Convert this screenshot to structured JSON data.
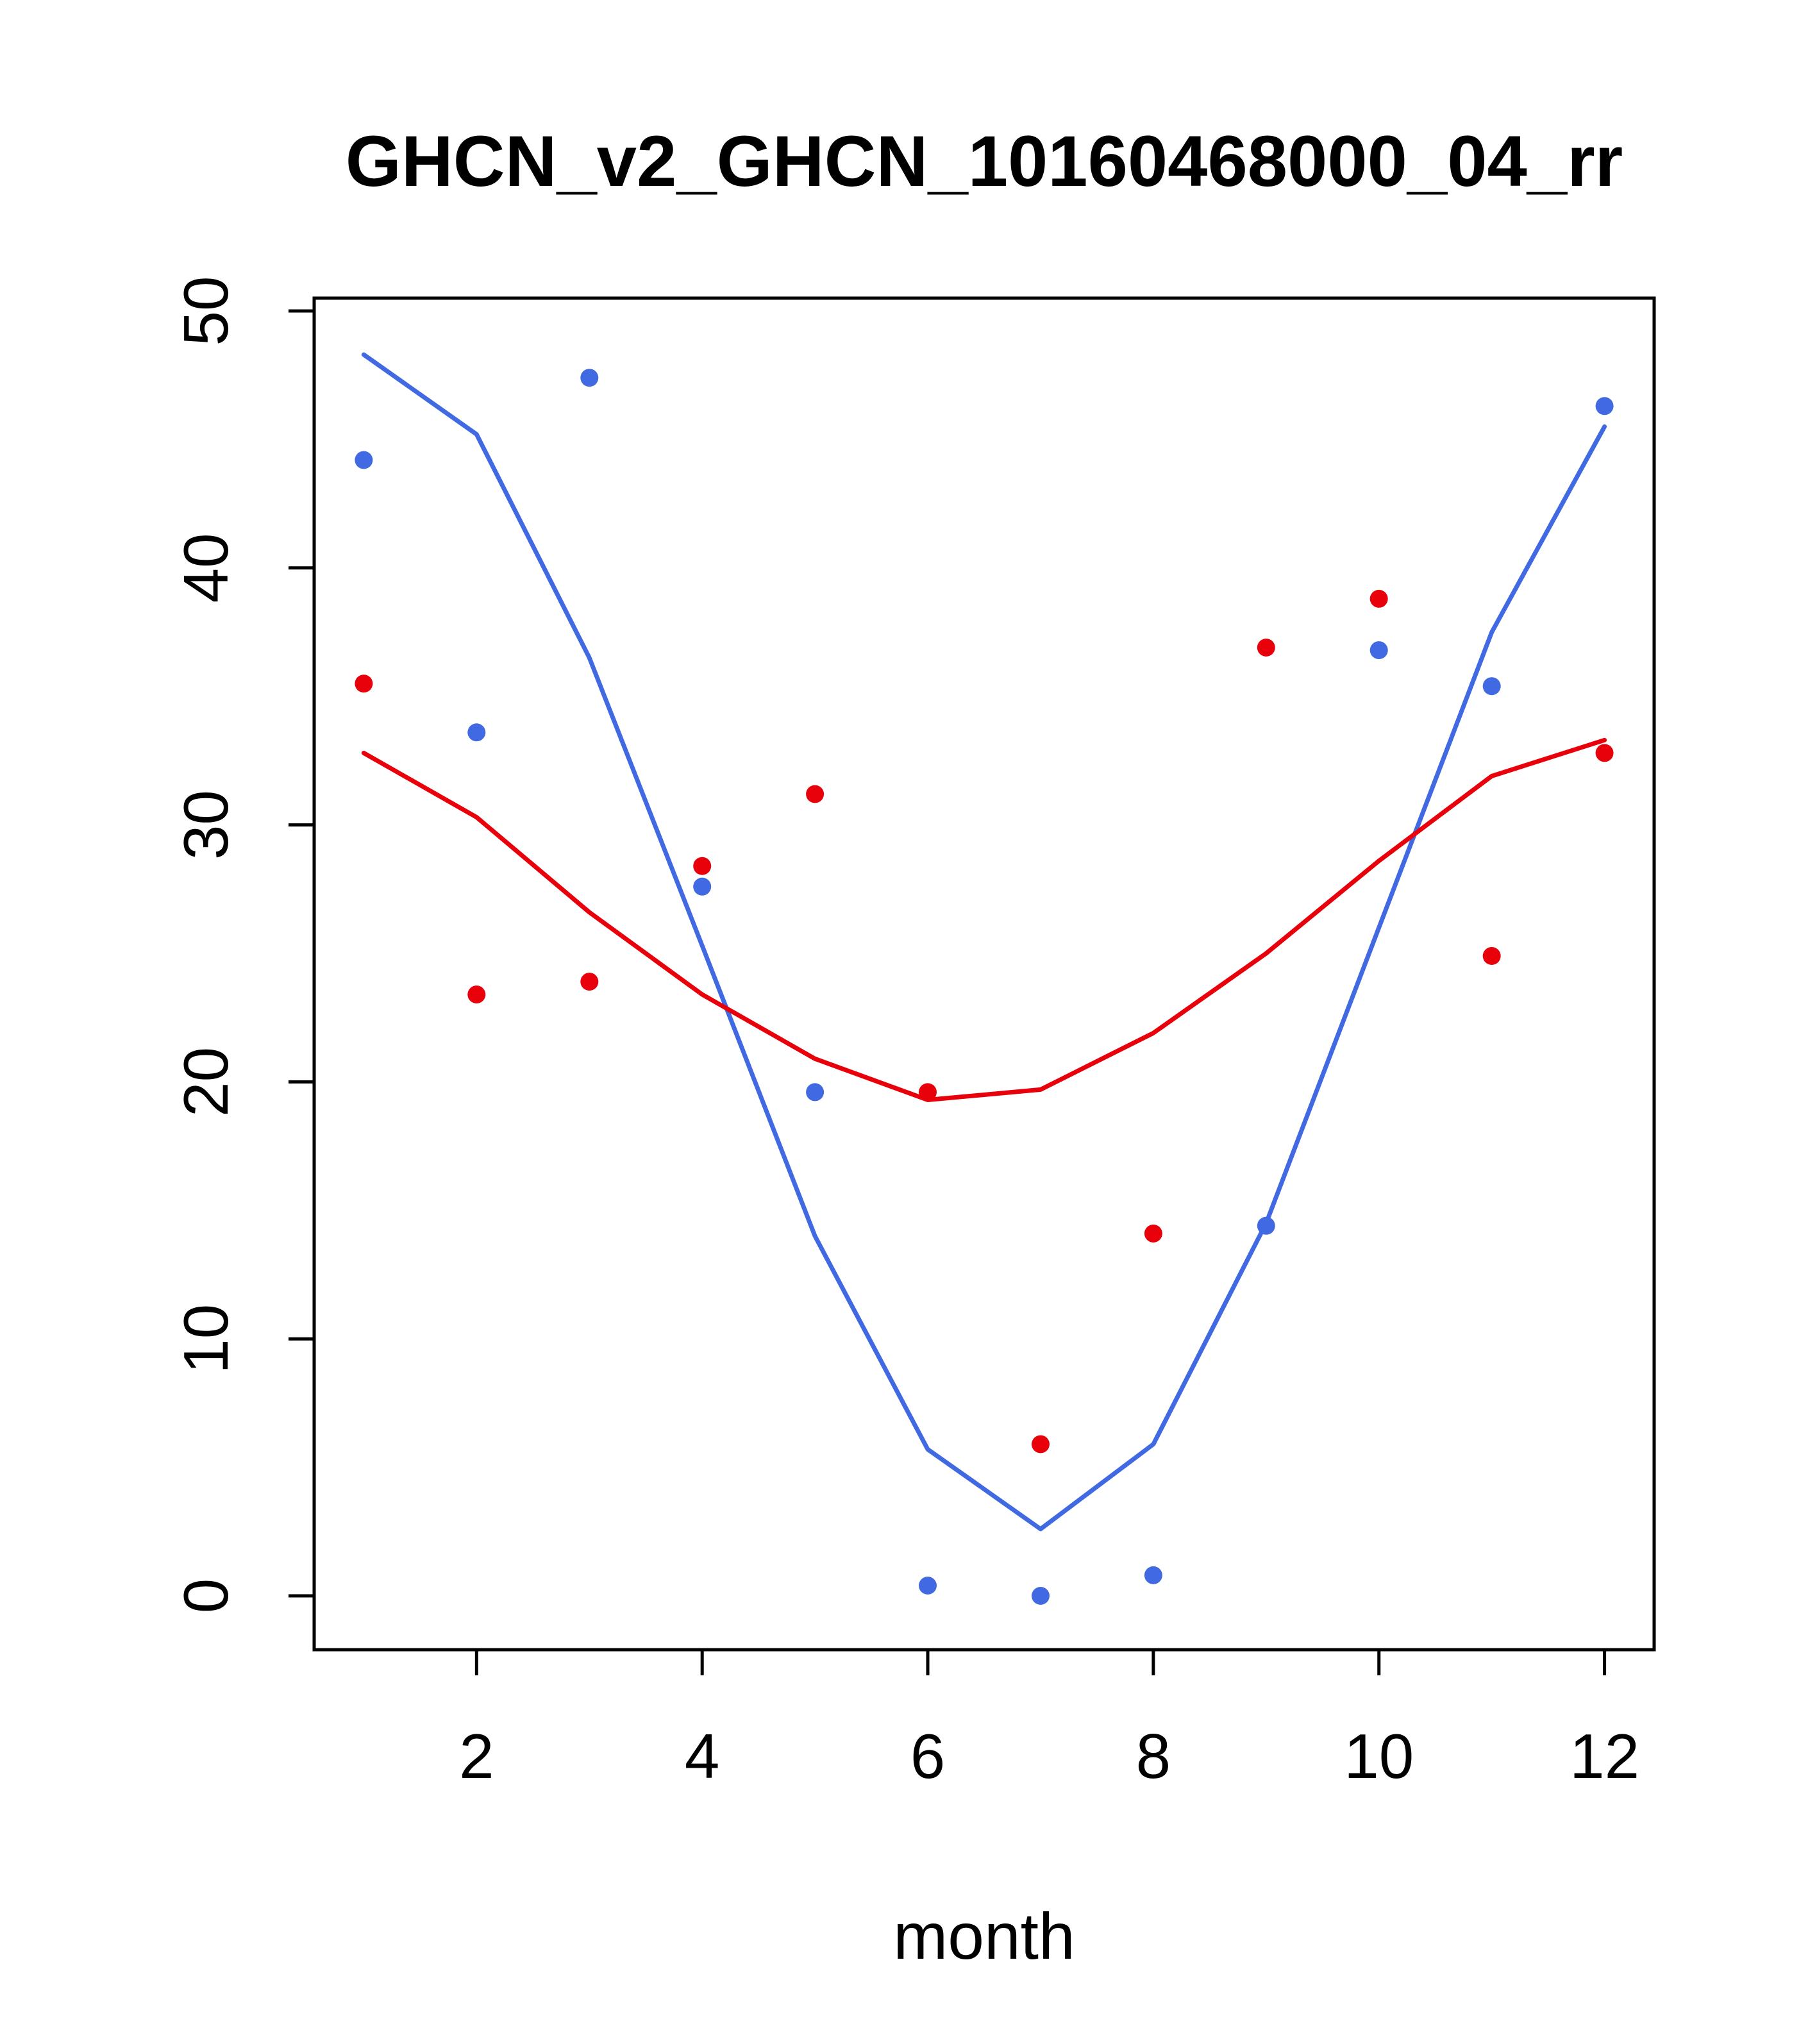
{
  "title": "GHCN_v2_GHCN_10160468000_04_rr",
  "colors": {
    "blue": "#4169e1",
    "red": "#e8000b",
    "axis": "#000000",
    "background": "#ffffff"
  },
  "chart_data": {
    "type": "scatter",
    "title": "GHCN_v2_GHCN_10160468000_04_rr",
    "xlabel": "month",
    "ylabel": "",
    "xlim": [
      0.56,
      12.44
    ],
    "ylim": [
      0,
      50
    ],
    "x_ticks": [
      2,
      4,
      6,
      8,
      10,
      12
    ],
    "y_ticks": [
      0,
      10,
      20,
      30,
      40,
      50
    ],
    "grid": false,
    "legend": "none",
    "x": [
      1,
      2,
      3,
      4,
      5,
      6,
      7,
      8,
      9,
      10,
      11,
      12
    ],
    "series": [
      {
        "name": "blue-points",
        "type": "points",
        "color": "#4169e1",
        "values": [
          44.2,
          33.6,
          47.4,
          27.6,
          19.6,
          0.4,
          0.0,
          0.8,
          14.4,
          36.8,
          35.4,
          46.3
        ]
      },
      {
        "name": "red-points",
        "type": "points",
        "color": "#e8000b",
        "values": [
          35.5,
          23.4,
          23.9,
          28.4,
          31.2,
          19.6,
          5.9,
          14.1,
          36.9,
          38.8,
          24.9,
          32.8
        ]
      },
      {
        "name": "blue-line",
        "type": "line",
        "color": "#4169e1",
        "values": [
          48.3,
          45.2,
          36.5,
          25.3,
          14.0,
          5.7,
          2.6,
          5.9,
          14.5,
          26.0,
          37.5,
          45.5
        ]
      },
      {
        "name": "red-line",
        "type": "line",
        "color": "#e8000b",
        "values": [
          32.8,
          30.3,
          26.6,
          23.4,
          20.9,
          19.3,
          19.7,
          21.9,
          25.0,
          28.6,
          31.9,
          33.3
        ]
      }
    ]
  }
}
